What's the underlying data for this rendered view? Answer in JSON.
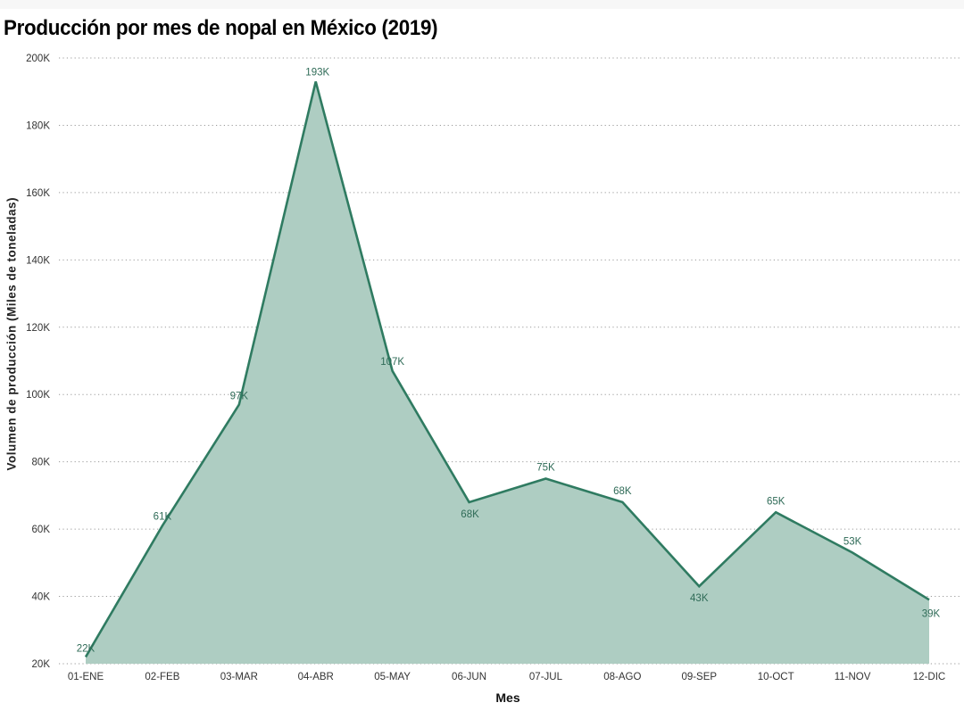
{
  "title": "Producción por mes de nopal en México (2019)",
  "colors": {
    "line": "#2f7b61",
    "fill": "#aecdc2",
    "label": "#2f6b57",
    "grid": "#9a9a9a",
    "axis_text": "#333333"
  },
  "chart_data": {
    "type": "area",
    "title": "Producción por mes de nopal en México (2019)",
    "xlabel": "Mes",
    "ylabel": "Volumen de producción (Miles de toneladas)",
    "categories": [
      "01-ENE",
      "02-FEB",
      "03-MAR",
      "04-ABR",
      "05-MAY",
      "06-JUN",
      "07-JUL",
      "08-AGO",
      "09-SEP",
      "10-OCT",
      "11-NOV",
      "12-DIC"
    ],
    "values": [
      22,
      61,
      97,
      193,
      107,
      68,
      75,
      68,
      43,
      65,
      53,
      39
    ],
    "data_labels": [
      "22K",
      "61K",
      "97K",
      "193K",
      "107K",
      "68K",
      "75K",
      "68K",
      "43K",
      "65K",
      "53K",
      "39K"
    ],
    "ylim": [
      20,
      200
    ],
    "yticks": [
      "20K",
      "40K",
      "60K",
      "80K",
      "100K",
      "120K",
      "140K",
      "160K",
      "180K",
      "200K"
    ],
    "grid": "horizontal dotted",
    "legend": null
  }
}
